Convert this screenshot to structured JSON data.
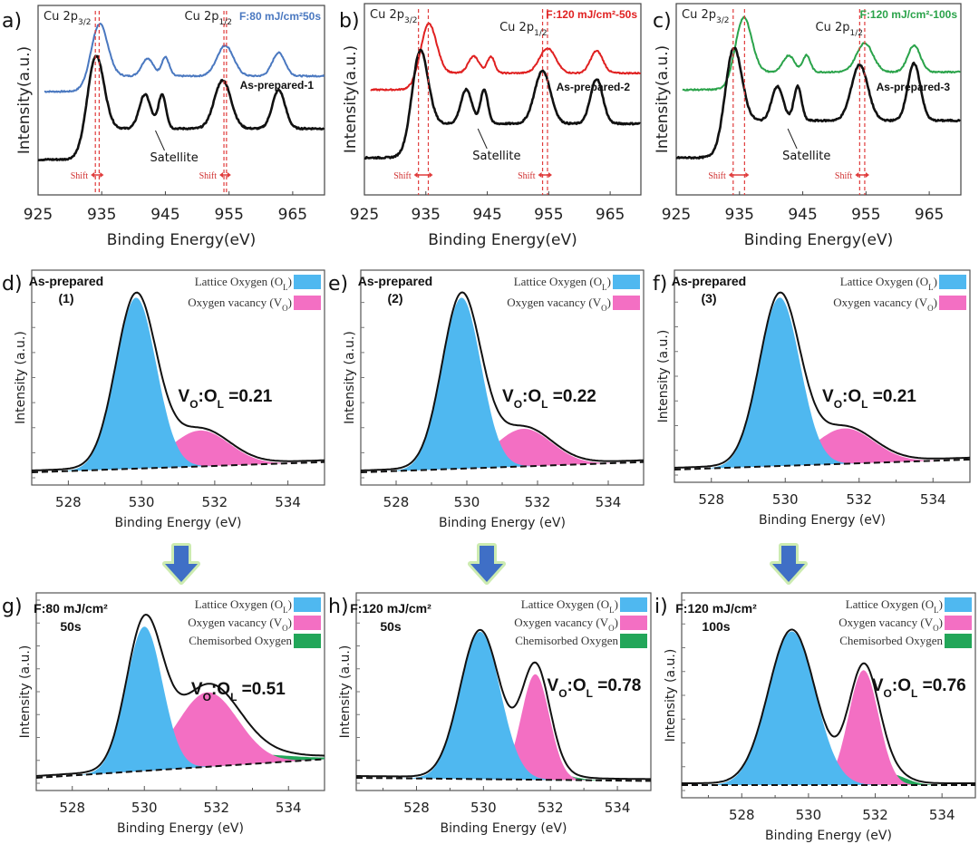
{
  "figure": {
    "arrow_color": "#3f6fc6",
    "arrow_glow": "#b6e38f"
  },
  "chart_data": [
    {
      "id": "a",
      "panel_label": "a)",
      "type": "line",
      "title": "",
      "xlabel": "Binding Energy(eV)",
      "ylabel": "Intensity(a.u.)",
      "xlim": [
        925,
        970
      ],
      "xticks": [
        925,
        935,
        945,
        955,
        965
      ],
      "peak_labels": [
        {
          "main": "Cu 2p",
          "sub": "3/2"
        },
        {
          "main": "Cu 2p",
          "sub": "1/2"
        }
      ],
      "satellite_label": "Satellite",
      "shift_label": "Shift",
      "shift_lines": [
        [
          934.0,
          934.6
        ],
        [
          954.2,
          954.6
        ]
      ],
      "series": [
        {
          "name": "F:80 mJ/cm²50s",
          "color": "#4a78c0",
          "offset": 1.0,
          "peaks": [
            [
              934.6,
              1.0,
              1.3
            ],
            [
              942.2,
              0.32,
              0.9
            ],
            [
              945.0,
              0.34,
              0.6
            ],
            [
              954.4,
              0.55,
              1.3
            ],
            [
              962.8,
              0.42,
              1.0
            ]
          ],
          "baseline": [
            0.0,
            0.28
          ],
          "start": 926
        },
        {
          "name": "As-prepared-1",
          "color": "#111111",
          "offset": 0.0,
          "peaks": [
            [
              934.0,
              1.28,
              1.3
            ],
            [
              941.8,
              0.55,
              0.9
            ],
            [
              944.5,
              0.55,
              0.6
            ],
            [
              954.0,
              0.78,
              1.3
            ],
            [
              962.8,
              0.62,
              1.0
            ]
          ],
          "baseline": [
            0.0,
            0.5
          ],
          "start": 925
        }
      ]
    },
    {
      "id": "b",
      "panel_label": "b)",
      "type": "line",
      "title": "",
      "xlabel": "Binding Energy(eV)",
      "ylabel": "Intensity(a.u.)",
      "xlim": [
        925,
        970
      ],
      "xticks": [
        925,
        935,
        945,
        955,
        965
      ],
      "peak_labels": [
        {
          "main": "Cu 2p",
          "sub": "3/2"
        },
        {
          "main": "Cu 2p",
          "sub": "1/2"
        }
      ],
      "satellite_label": "Satellite",
      "shift_label": "Shift",
      "shift_lines": [
        [
          933.8,
          935.4
        ],
        [
          954.0,
          954.8
        ]
      ],
      "series": [
        {
          "name": "F:120 mJ/cm²-50s",
          "color": "#e02020",
          "offset": 1.0,
          "peaks": [
            [
              935.4,
              0.95,
              1.3
            ],
            [
              942.8,
              0.3,
              0.9
            ],
            [
              945.6,
              0.3,
              0.6
            ],
            [
              954.8,
              0.45,
              1.3
            ],
            [
              962.8,
              0.4,
              1.0
            ]
          ],
          "baseline": [
            0.0,
            0.3
          ],
          "start": 926
        },
        {
          "name": "As-prepared-2",
          "color": "#111111",
          "offset": 0.0,
          "peaks": [
            [
              934.0,
              1.3,
              1.3
            ],
            [
              941.6,
              0.55,
              0.9
            ],
            [
              944.5,
              0.55,
              0.6
            ],
            [
              954.0,
              0.85,
              1.3
            ],
            [
              962.8,
              0.72,
              1.0
            ]
          ],
          "baseline": [
            0.0,
            0.55
          ],
          "start": 925
        }
      ]
    },
    {
      "id": "c",
      "panel_label": "c)",
      "type": "line",
      "title": "",
      "xlabel": "Binding Energy(eV)",
      "ylabel": "Intensity(a.u.)",
      "xlim": [
        925,
        970
      ],
      "xticks": [
        925,
        935,
        945,
        955,
        965
      ],
      "peak_labels": [
        {
          "main": "Cu 2p",
          "sub": "3/2"
        },
        {
          "main": "Cu 2p",
          "sub": "1/2"
        }
      ],
      "satellite_label": "Satellite",
      "shift_label": "Shift",
      "shift_lines": [
        [
          934.0,
          935.8
        ],
        [
          954.0,
          954.8
        ]
      ],
      "series": [
        {
          "name": "F:120 mJ/cm²-100s",
          "color": "#2aa34a",
          "offset": 1.0,
          "peaks": [
            [
              935.6,
              1.05,
              1.3
            ],
            [
              942.8,
              0.3,
              0.9
            ],
            [
              945.6,
              0.3,
              0.6
            ],
            [
              954.8,
              0.52,
              1.3
            ],
            [
              962.6,
              0.48,
              1.0
            ]
          ],
          "baseline": [
            0.0,
            0.32
          ],
          "start": 926
        },
        {
          "name": "As-prepared-3",
          "color": "#111111",
          "offset": 0.0,
          "peaks": [
            [
              934.0,
              1.3,
              1.3
            ],
            [
              941.0,
              0.55,
              0.9
            ],
            [
              944.2,
              0.55,
              0.6
            ],
            [
              954.0,
              0.9,
              1.3
            ],
            [
              962.6,
              0.92,
              1.0
            ]
          ],
          "baseline": [
            0.0,
            0.6
          ],
          "start": 925
        }
      ]
    },
    {
      "id": "d",
      "panel_label": "d)",
      "type": "area",
      "title": "As-prepared",
      "subtitle": "(1)",
      "xlabel": "Binding Energy (eV)",
      "ylabel": "Intensity (a.u.)",
      "xlim": [
        527,
        535
      ],
      "xticks": [
        528,
        530,
        532,
        534
      ],
      "ratio": {
        "main_a": "V",
        "sub_a": "O",
        "sep": ":",
        "main_b": "O",
        "sub_b": "L",
        "value": "=0.21"
      },
      "legend": [
        {
          "label": "Lattice Oxygen (O",
          "sub": "L",
          "tail": ")",
          "color": "#4fb8f0"
        },
        {
          "label": "Oxygen vacancy (V",
          "sub": "O",
          "tail": ")",
          "color": "#f36fc3"
        }
      ],
      "baseline": [
        0.0,
        0.06
      ],
      "components": [
        {
          "name": "Lattice Oxygen",
          "center": 529.85,
          "height": 1.0,
          "width": 0.55,
          "color": "#4fb8f0"
        },
        {
          "name": "Oxygen vacancy",
          "center": 531.6,
          "height": 0.21,
          "width": 0.8,
          "color": "#f36fc3"
        }
      ]
    },
    {
      "id": "e",
      "panel_label": "e)",
      "type": "area",
      "title": "As-prepared",
      "subtitle": "(2)",
      "xlabel": "Binding Energy (eV)",
      "ylabel": "Intensity (a.u.)",
      "xlim": [
        527,
        535
      ],
      "xticks": [
        528,
        530,
        532,
        534
      ],
      "ratio": {
        "main_a": "V",
        "sub_a": "O",
        "sep": ":",
        "main_b": "O",
        "sub_b": "L",
        "value": "=0.22"
      },
      "legend": [
        {
          "label": "Lattice Oxygen (O",
          "sub": "L",
          "tail": ")",
          "color": "#4fb8f0"
        },
        {
          "label": "Oxygen vacancy (V",
          "sub": "O",
          "tail": ")",
          "color": "#f36fc3"
        }
      ],
      "baseline": [
        0.0,
        0.06
      ],
      "components": [
        {
          "name": "Lattice Oxygen",
          "center": 529.85,
          "height": 1.0,
          "width": 0.55,
          "color": "#4fb8f0"
        },
        {
          "name": "Oxygen vacancy",
          "center": 531.6,
          "height": 0.22,
          "width": 0.8,
          "color": "#f36fc3"
        }
      ]
    },
    {
      "id": "f",
      "panel_label": "f)",
      "type": "area",
      "title": "As-prepared",
      "subtitle": "(3)",
      "xlabel": "Binding Energy (eV)",
      "ylabel": "Intensity (a.u.)",
      "xlim": [
        527,
        535
      ],
      "xticks": [
        528,
        530,
        532,
        534
      ],
      "ratio": {
        "main_a": "V",
        "sub_a": "O",
        "sep": ":",
        "main_b": "O",
        "sub_b": "L",
        "value": "=0.21"
      },
      "legend": [
        {
          "label": "Lattice Oxygen (O",
          "sub": "L",
          "tail": ")",
          "color": "#4fb8f0"
        },
        {
          "label": "Oxygen vacancy (V",
          "sub": "O",
          "tail": ")",
          "color": "#f36fc3"
        }
      ],
      "baseline": [
        0.0,
        0.06
      ],
      "components": [
        {
          "name": "Lattice Oxygen",
          "center": 529.85,
          "height": 1.0,
          "width": 0.55,
          "color": "#4fb8f0"
        },
        {
          "name": "Oxygen vacancy",
          "center": 531.6,
          "height": 0.21,
          "width": 0.8,
          "color": "#f36fc3"
        }
      ]
    },
    {
      "id": "g",
      "panel_label": "g)",
      "type": "area",
      "title": "F:80 mJ/cm²",
      "subtitle": "50s",
      "xlabel": "Binding Energy (eV)",
      "ylabel": "Intensity (a.u.)",
      "xlim": [
        527,
        535
      ],
      "xticks": [
        528,
        530,
        532,
        534
      ],
      "ratio": {
        "main_a": "V",
        "sub_a": "O",
        "sep": ":",
        "main_b": "O",
        "sub_b": "L",
        "value": "=0.51"
      },
      "legend": [
        {
          "label": "Lattice Oxygen (O",
          "sub": "L",
          "tail": ")",
          "color": "#4fb8f0"
        },
        {
          "label": "Oxygen vacancy (V",
          "sub": "O",
          "tail": ")",
          "color": "#f36fc3"
        },
        {
          "label": "Chemisorbed Oxygen",
          "sub": "",
          "tail": "",
          "color": "#22a659"
        }
      ],
      "baseline": [
        0.0,
        0.12
      ],
      "components": [
        {
          "name": "Lattice Oxygen",
          "center": 530.0,
          "height": 0.93,
          "width": 0.5,
          "color": "#4fb8f0"
        },
        {
          "name": "Oxygen vacancy",
          "center": 531.75,
          "height": 0.48,
          "width": 0.85,
          "color": "#f36fc3"
        },
        {
          "name": "Chemisorbed Oxygen",
          "center": 532.8,
          "height": 0.06,
          "width": 1.2,
          "color": "#22a659"
        }
      ]
    },
    {
      "id": "h",
      "panel_label": "h)",
      "type": "area",
      "title": "F:120 mJ/cm²",
      "subtitle": "50s",
      "xlabel": "Binding Energy (eV)",
      "ylabel": "Intensity (a.u.)",
      "xlim": [
        526.2,
        535
      ],
      "xticks": [
        528,
        530,
        532,
        534
      ],
      "ratio": {
        "main_a": "V",
        "sub_a": "O",
        "sep": ":",
        "main_b": "O",
        "sub_b": "L",
        "value": "=0.78"
      },
      "legend": [
        {
          "label": "Lattice Oxygen (O",
          "sub": "L",
          "tail": ")",
          "color": "#4fb8f0"
        },
        {
          "label": "Oxygen vacancy (V",
          "sub": "O",
          "tail": ")",
          "color": "#f36fc3"
        },
        {
          "label": "Chemisorbed Oxygen",
          "sub": "",
          "tail": "",
          "color": "#22a659"
        }
      ],
      "baseline": [
        0.0,
        -0.02
      ],
      "components": [
        {
          "name": "Lattice Oxygen",
          "center": 529.9,
          "height": 0.95,
          "width": 0.6,
          "color": "#4fb8f0"
        },
        {
          "name": "Oxygen vacancy",
          "center": 531.55,
          "height": 0.68,
          "width": 0.42,
          "color": "#f36fc3"
        },
        {
          "name": "Chemisorbed Oxygen",
          "center": 531.9,
          "height": 0.05,
          "width": 0.6,
          "color": "#22a659"
        }
      ]
    },
    {
      "id": "i",
      "panel_label": "i)",
      "type": "area",
      "title": "F:120 mJ/cm²",
      "subtitle": "100s",
      "xlabel": "Binding Energy (eV)",
      "ylabel": "Intensity (a.u.)",
      "xlim": [
        526.2,
        535
      ],
      "xticks": [
        528,
        530,
        532,
        534
      ],
      "ratio": {
        "main_a": "V",
        "sub_a": "O",
        "sep": ":",
        "main_b": "O",
        "sub_b": "L",
        "value": "=0.76"
      },
      "legend": [
        {
          "label": "Lattice Oxygen (O",
          "sub": "L",
          "tail": ")",
          "color": "#4fb8f0"
        },
        {
          "label": "Oxygen vacancy (V",
          "sub": "O",
          "tail": ")",
          "color": "#f36fc3"
        },
        {
          "label": "Chemisorbed Oxygen",
          "sub": "",
          "tail": "",
          "color": "#22a659"
        }
      ],
      "baseline": [
        0.0,
        0.0
      ],
      "components": [
        {
          "name": "Lattice Oxygen",
          "center": 529.5,
          "height": 0.95,
          "width": 0.7,
          "color": "#4fb8f0"
        },
        {
          "name": "Oxygen vacancy",
          "center": 531.65,
          "height": 0.71,
          "width": 0.45,
          "color": "#f36fc3"
        },
        {
          "name": "Chemisorbed Oxygen",
          "center": 532.4,
          "height": 0.07,
          "width": 0.5,
          "color": "#22a659"
        }
      ]
    }
  ]
}
